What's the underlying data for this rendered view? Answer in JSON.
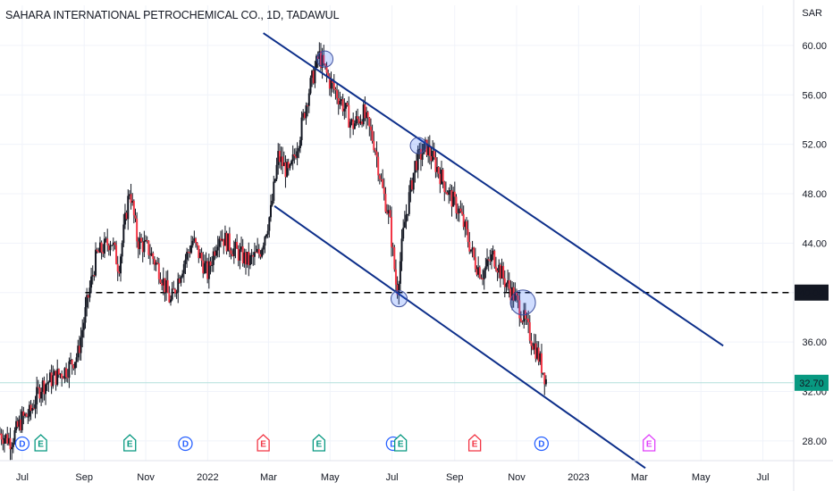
{
  "header": {
    "title": "SAHARA INTERNATIONAL PETROCHEMICAL CO., 1D, TADAWUL"
  },
  "chart_data": {
    "type": "candlestick",
    "title": "SAHARA INTERNATIONAL PETROCHEMICAL CO., 1D, TADAWUL",
    "currency_label": "SAR",
    "y_ticks": [
      "60.00",
      "56.00",
      "52.00",
      "48.00",
      "44.00",
      "36.00",
      "28.00"
    ],
    "partially_hidden_tick": "32.00",
    "x_ticks": [
      {
        "label": "Jul",
        "t": 2021.5
      },
      {
        "label": "Sep",
        "t": 2021.667
      },
      {
        "label": "Nov",
        "t": 2021.833
      },
      {
        "label": "2022",
        "t": 2022.0
      },
      {
        "label": "Mar",
        "t": 2022.164
      },
      {
        "label": "May",
        "t": 2022.33
      },
      {
        "label": "Jul",
        "t": 2022.497
      },
      {
        "label": "Sep",
        "t": 2022.666
      },
      {
        "label": "Nov",
        "t": 2022.833
      },
      {
        "label": "2023",
        "t": 2023.0
      },
      {
        "label": "Mar",
        "t": 2023.164
      },
      {
        "label": "May",
        "t": 2023.33
      },
      {
        "label": "Jul",
        "t": 2023.497
      }
    ],
    "ylim": [
      26.4,
      61.8
    ],
    "xlim": [
      2021.44,
      2023.58
    ],
    "price_path": [
      [
        2021.44,
        28.6
      ],
      [
        2021.47,
        28.0
      ],
      [
        2021.5,
        29.8
      ],
      [
        2021.52,
        30.2
      ],
      [
        2021.55,
        32.4
      ],
      [
        2021.58,
        33.0
      ],
      [
        2021.62,
        33.8
      ],
      [
        2021.65,
        35.0
      ],
      [
        2021.68,
        40.0
      ],
      [
        2021.7,
        43.0
      ],
      [
        2021.74,
        44.3
      ],
      [
        2021.76,
        42.0
      ],
      [
        2021.79,
        48.5
      ],
      [
        2021.81,
        44.2
      ],
      [
        2021.84,
        43.5
      ],
      [
        2021.87,
        41.8
      ],
      [
        2021.9,
        39.2
      ],
      [
        2021.93,
        42.0
      ],
      [
        2021.96,
        44.2
      ],
      [
        2022.0,
        41.5
      ],
      [
        2022.03,
        44.8
      ],
      [
        2022.07,
        43.5
      ],
      [
        2022.11,
        42.5
      ],
      [
        2022.14,
        43.2
      ],
      [
        2022.17,
        46.5
      ],
      [
        2022.19,
        51.0
      ],
      [
        2022.22,
        49.5
      ],
      [
        2022.25,
        53.0
      ],
      [
        2022.27,
        56.0
      ],
      [
        2022.3,
        59.2
      ],
      [
        2022.33,
        57.0
      ],
      [
        2022.36,
        55.5
      ],
      [
        2022.39,
        53.5
      ],
      [
        2022.42,
        54.5
      ],
      [
        2022.45,
        52.0
      ],
      [
        2022.47,
        48.5
      ],
      [
        2022.49,
        46.0
      ],
      [
        2022.51,
        40.0
      ],
      [
        2022.53,
        45.5
      ],
      [
        2022.56,
        50.5
      ],
      [
        2022.59,
        51.8
      ],
      [
        2022.62,
        50.0
      ],
      [
        2022.65,
        48.0
      ],
      [
        2022.68,
        46.5
      ],
      [
        2022.7,
        44.5
      ],
      [
        2022.72,
        42.5
      ],
      [
        2022.74,
        41.5
      ],
      [
        2022.77,
        43.0
      ],
      [
        2022.8,
        41.0
      ],
      [
        2022.83,
        39.5
      ],
      [
        2022.85,
        38.0
      ],
      [
        2022.87,
        36.5
      ],
      [
        2022.89,
        35.0
      ],
      [
        2022.915,
        32.7
      ]
    ],
    "last_price": "32.70",
    "levels": [
      {
        "label": "40.00",
        "value": 40.0,
        "style": "dashed"
      }
    ],
    "channel_lines": [
      {
        "name": "upper",
        "start": [
          2022.15,
          61.0
        ],
        "end": [
          2023.39,
          35.7
        ]
      },
      {
        "name": "lower",
        "start": [
          2022.18,
          47.0
        ],
        "end": [
          2023.18,
          25.8
        ]
      }
    ],
    "touch_points": [
      {
        "t": 2022.316,
        "v": 58.9
      },
      {
        "t": 2022.568,
        "v": 51.9
      },
      {
        "t": 2022.516,
        "v": 39.5
      },
      {
        "t": 2022.85,
        "v": 39.2
      }
    ],
    "events": [
      {
        "label": "D",
        "t": 2021.5
      },
      {
        "label": "E",
        "t": 2021.55
      },
      {
        "label": "E",
        "t": 2021.79
      },
      {
        "label": "D",
        "t": 2021.94
      },
      {
        "label": "E",
        "t": 2022.15
      },
      {
        "label": "E",
        "t": 2022.3
      },
      {
        "label": "D",
        "t": 2022.5
      },
      {
        "label": "E",
        "t": 2022.52
      },
      {
        "label": "E",
        "t": 2022.72
      },
      {
        "label": "D",
        "t": 2022.9
      },
      {
        "label": "E",
        "t": 2023.19
      }
    ],
    "colors": {
      "up": "#089981",
      "down": "#f23645",
      "wick": "#131722",
      "channel": "#0d2f8a",
      "level": "#000000",
      "last_price_bg": "#089981",
      "dividend": "#2962ff",
      "earnings_past_green": "#089981",
      "earnings_past_red": "#f23645",
      "earnings_future": "#e040fb",
      "grid": "#f0f3fa"
    }
  }
}
